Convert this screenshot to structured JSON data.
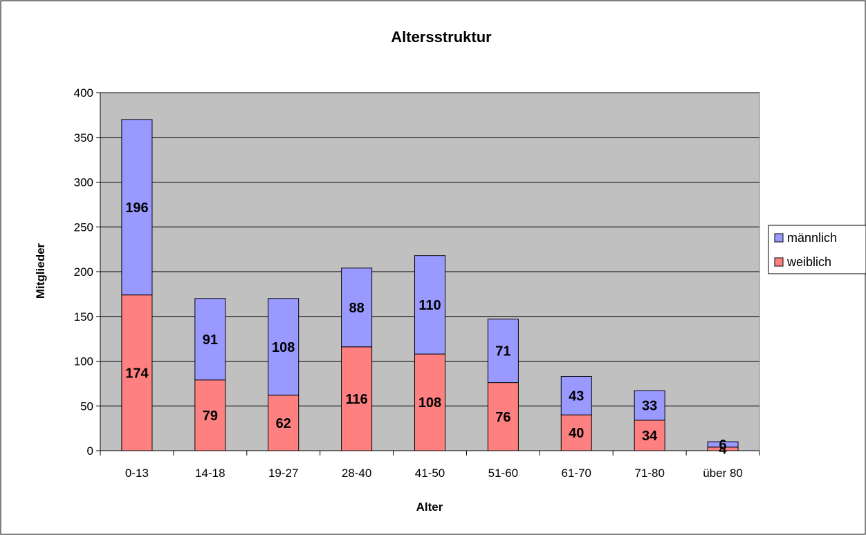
{
  "chart_data": {
    "type": "bar",
    "stacked": true,
    "title": "Altersstruktur",
    "xlabel": "Alter",
    "ylabel": "Mitglieder",
    "ylim": [
      0,
      400
    ],
    "yticks": [
      0,
      50,
      100,
      150,
      200,
      250,
      300,
      350,
      400
    ],
    "grid": true,
    "legend_position": "right",
    "categories": [
      "0-13",
      "14-18",
      "19-27",
      "28-40",
      "41-50",
      "51-60",
      "61-70",
      "71-80",
      "über 80"
    ],
    "series": [
      {
        "name": "weiblich",
        "color": "#FF8080",
        "values": [
          174,
          79,
          62,
          116,
          108,
          76,
          40,
          34,
          4
        ]
      },
      {
        "name": "männlich",
        "color": "#9999FF",
        "values": [
          196,
          91,
          108,
          88,
          110,
          71,
          43,
          33,
          6
        ]
      }
    ],
    "plot_background": "#C0C0C0"
  }
}
